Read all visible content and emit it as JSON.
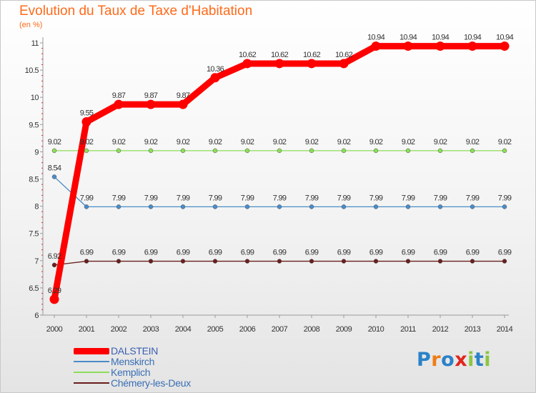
{
  "header": {
    "title": "Evolution du Taux de Taxe d'Habitation",
    "subtitle": "(en %)"
  },
  "logo": {
    "text": "Proxiti",
    "letters": [
      "P",
      "r",
      "o",
      "x",
      "i",
      "t",
      "i"
    ],
    "colors": [
      "#2a82c8",
      "#ef7d14",
      "#2a82c8",
      "#e0261c",
      "#8cc63f",
      "#2a82c8",
      "#8cc63f"
    ]
  },
  "chart_data": {
    "type": "line",
    "title": "Evolution du Taux de Taxe d'Habitation",
    "ylabel": "(en %)",
    "xlabel": "",
    "x": [
      "2000",
      "2001",
      "2002",
      "2003",
      "2004",
      "2005",
      "2006",
      "2007",
      "2008",
      "2009",
      "2010",
      "2011",
      "2012",
      "2013",
      "2014"
    ],
    "ylim": [
      6,
      11
    ],
    "yticks": [
      6,
      6.5,
      7,
      7.5,
      8,
      8.5,
      9,
      9.5,
      10,
      10.5,
      11
    ],
    "ytick_labels": [
      "6",
      "6.5",
      "7",
      "7.5",
      "8",
      "8.5",
      "9",
      "9.5",
      "10",
      "10.5",
      "11"
    ],
    "grid": false,
    "series": [
      {
        "name": "DALSTEIN",
        "color": "#ff0000",
        "values": [
          6.29,
          9.55,
          9.87,
          9.87,
          9.87,
          10.36,
          10.62,
          10.62,
          10.62,
          10.62,
          10.94,
          10.94,
          10.94,
          10.94,
          10.94
        ],
        "labels": [
          "6.29",
          "9.55",
          "9.87",
          "9.87",
          "9.87",
          "10.36",
          "10.62",
          "10.62",
          "10.62",
          "10.62",
          "10.94",
          "10.94",
          "10.94",
          "10.94",
          "10.94"
        ]
      },
      {
        "name": "Menskirch",
        "color": "#4a8cc8",
        "values": [
          8.54,
          7.99,
          7.99,
          7.99,
          7.99,
          7.99,
          7.99,
          7.99,
          7.99,
          7.99,
          7.99,
          7.99,
          7.99,
          7.99,
          7.99
        ],
        "labels": [
          "8.54",
          "7.99",
          "7.99",
          "7.99",
          "7.99",
          "7.99",
          "7.99",
          "7.99",
          "7.99",
          "7.99",
          "7.99",
          "7.99",
          "7.99",
          "7.99",
          "7.99"
        ]
      },
      {
        "name": "Kemplich",
        "color": "#8edc5a",
        "values": [
          9.02,
          9.02,
          9.02,
          9.02,
          9.02,
          9.02,
          9.02,
          9.02,
          9.02,
          9.02,
          9.02,
          9.02,
          9.02,
          9.02,
          9.02
        ],
        "labels": [
          "9.02",
          "9.02",
          "9.02",
          "9.02",
          "9.02",
          "9.02",
          "9.02",
          "9.02",
          "9.02",
          "9.02",
          "9.02",
          "9.02",
          "9.02",
          "9.02",
          "9.02"
        ]
      },
      {
        "name": "Chémery-les-Deux",
        "color": "#6a1e1e",
        "values": [
          6.92,
          6.99,
          6.99,
          6.99,
          6.99,
          6.99,
          6.99,
          6.99,
          6.99,
          6.99,
          6.99,
          6.99,
          6.99,
          6.99,
          6.99
        ],
        "labels": [
          "6.92",
          "6.99",
          "6.99",
          "6.99",
          "6.99",
          "6.99",
          "6.99",
          "6.99",
          "6.99",
          "6.99",
          "6.99",
          "6.99",
          "6.99",
          "6.99",
          "6.99"
        ]
      }
    ]
  }
}
